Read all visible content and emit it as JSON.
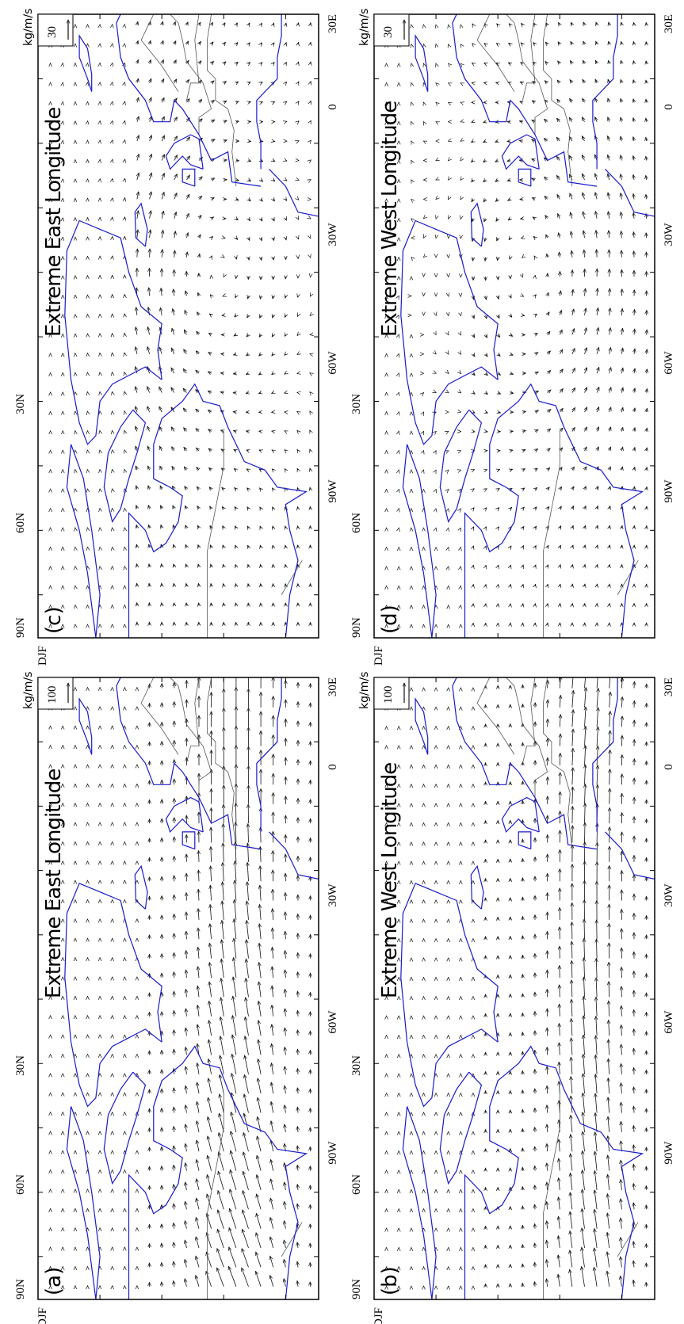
{
  "figure": {
    "panels": [
      {
        "id": "a",
        "label": "(a)",
        "title": "Extreme East Longitude",
        "season": "DJF",
        "ref_vector": "100",
        "units": "kg/m/s",
        "lat_ticks": [
          "90N",
          "60N",
          "30N"
        ],
        "lon_ticks": [
          "90W",
          "60W",
          "30W",
          "0",
          "30E"
        ],
        "flow": "strong-southwest"
      },
      {
        "id": "b",
        "label": "(b)",
        "title": "Extreme West Longitude",
        "season": "DJF",
        "ref_vector": "100",
        "units": "kg/m/s",
        "lat_ticks": [
          "90N",
          "60N",
          "30N"
        ],
        "lon_ticks": [
          "90W",
          "60W",
          "30W",
          "0",
          "30E"
        ],
        "flow": "zonal-west"
      },
      {
        "id": "c",
        "label": "(c)",
        "title": "Extreme East Longitude",
        "season": "DJF",
        "ref_vector": "30",
        "units": "kg/m/s",
        "lat_ticks": [
          "90N",
          "60N",
          "30N"
        ],
        "lon_ticks": [
          "90W",
          "60W",
          "30W",
          "0",
          "30E"
        ],
        "flow": "anomaly-cyclonic"
      },
      {
        "id": "d",
        "label": "(d)",
        "title": "Extreme West Longitude",
        "season": "DJF",
        "ref_vector": "30",
        "units": "kg/m/s",
        "lat_ticks": [
          "90N",
          "60N",
          "30N"
        ],
        "lon_ticks": [
          "90W",
          "60W",
          "30W",
          "0",
          "30E"
        ],
        "flow": "anomaly-anticyclonic"
      }
    ],
    "colors": {
      "coast": "#1a1acc",
      "borders": "#555555",
      "vectors": "#111111",
      "frame": "#000000"
    }
  }
}
